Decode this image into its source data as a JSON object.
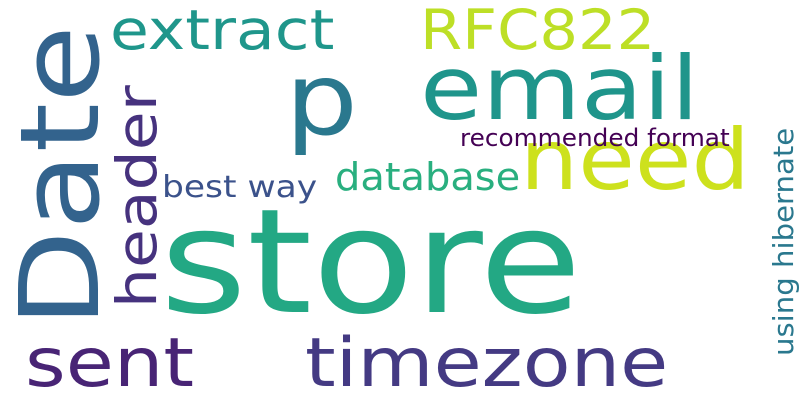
{
  "words": [
    {
      "text": "store",
      "color": "#23a884"
    },
    {
      "text": "Date",
      "color": "#33638d"
    },
    {
      "text": "email",
      "color": "#1f958b"
    },
    {
      "text": "p",
      "color": "#2a788e"
    },
    {
      "text": "need",
      "color": "#cde11d"
    },
    {
      "text": "timezone",
      "color": "#443a83"
    },
    {
      "text": "sent",
      "color": "#482475"
    },
    {
      "text": "extract",
      "color": "#1f968b"
    },
    {
      "text": "RFC822",
      "color": "#bddf26"
    },
    {
      "text": "header",
      "color": "#46327e"
    },
    {
      "text": "database",
      "color": "#29af7f"
    },
    {
      "text": "best way",
      "color": "#3b528b"
    },
    {
      "text": "recommended format",
      "color": "#440154"
    },
    {
      "text": "using hibernate",
      "color": "#2a788e"
    }
  ]
}
